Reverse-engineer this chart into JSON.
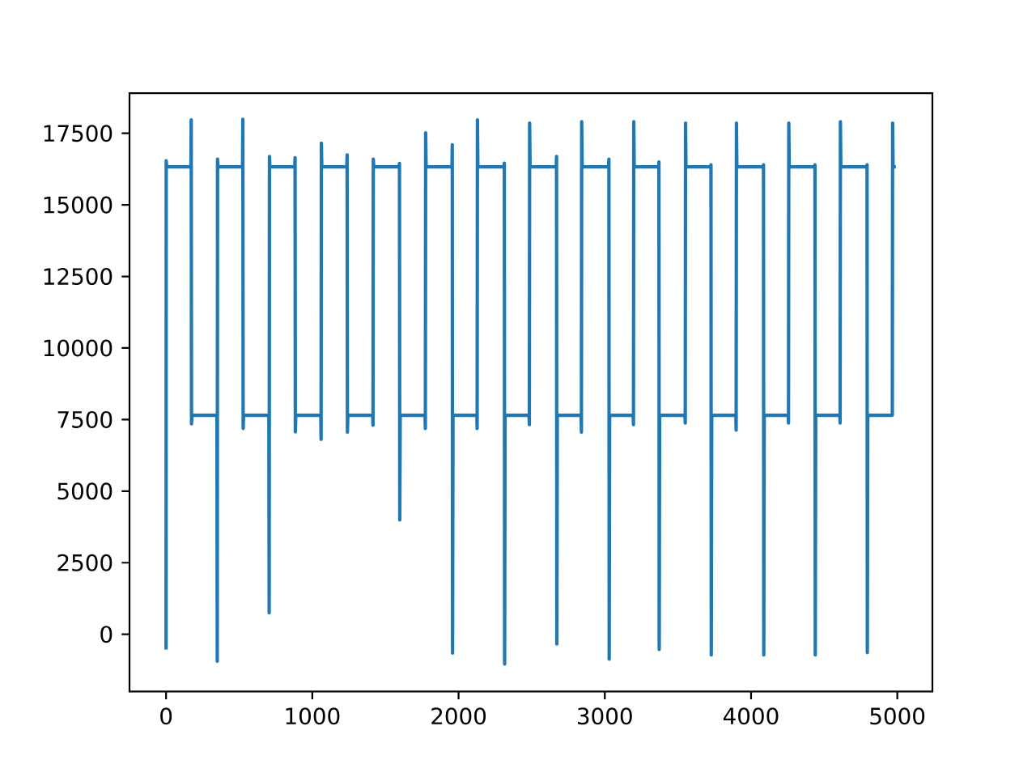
{
  "chart_data": {
    "type": "line",
    "color": "#1f77b4",
    "x": [
      0,
      1,
      4,
      170,
      172,
      174,
      177,
      348,
      350,
      352,
      355,
      523,
      525,
      527,
      530,
      703,
      705,
      707,
      710,
      880,
      882,
      884,
      887,
      1058,
      1060,
      1062,
      1065,
      1236,
      1238,
      1240,
      1243,
      1413,
      1415,
      1417,
      1420,
      1594,
      1596,
      1598,
      1601,
      1771,
      1773,
      1775,
      1778,
      1955,
      1957,
      1959,
      1962,
      2125,
      2127,
      2129,
      2132,
      2311,
      2313,
      2315,
      2318,
      2482,
      2484,
      2486,
      2489,
      2668,
      2670,
      2672,
      2675,
      2838,
      2840,
      2842,
      2845,
      3026,
      3028,
      3030,
      3033,
      3194,
      3196,
      3198,
      3201,
      3368,
      3370,
      3372,
      3375,
      3548,
      3550,
      3552,
      3555,
      3724,
      3726,
      3728,
      3731,
      3896,
      3898,
      3900,
      3903,
      4083,
      4085,
      4087,
      4090,
      4254,
      4256,
      4258,
      4261,
      4435,
      4437,
      4439,
      4442,
      4607,
      4609,
      4611,
      4614,
      4791,
      4793,
      4795,
      4798,
      4966,
      4968,
      4971,
      4990
    ],
    "values": [
      -530,
      16540,
      16330,
      16330,
      17970,
      7350,
      7650,
      7650,
      -940,
      16600,
      16330,
      16330,
      17990,
      7190,
      7650,
      7650,
      750,
      16690,
      16330,
      16330,
      16650,
      7070,
      7650,
      7650,
      6810,
      17160,
      16330,
      16330,
      16750,
      7060,
      7650,
      7650,
      7300,
      16600,
      16330,
      16330,
      16450,
      3990,
      7650,
      7650,
      7190,
      17520,
      16330,
      16330,
      17100,
      -660,
      7650,
      7650,
      7190,
      17970,
      16330,
      16330,
      16460,
      -1040,
      7650,
      7650,
      7320,
      17860,
      16330,
      16330,
      16690,
      -340,
      7650,
      7650,
      7060,
      17910,
      16330,
      16330,
      16600,
      -870,
      7650,
      7650,
      7320,
      17910,
      16330,
      16330,
      16500,
      -530,
      7650,
      7650,
      7380,
      17860,
      16330,
      16330,
      16400,
      -720,
      7650,
      7650,
      7130,
      17860,
      16330,
      16330,
      16400,
      -720,
      7650,
      7650,
      7380,
      17860,
      16330,
      16330,
      16400,
      -720,
      7650,
      7650,
      7380,
      17910,
      16330,
      16330,
      16400,
      -640,
      7650,
      7650,
      17860,
      16330,
      16330
    ],
    "xlim": [
      -250,
      5240
    ],
    "ylim": [
      -2000,
      18900
    ],
    "xticks": [
      0,
      1000,
      2000,
      3000,
      4000,
      5000
    ],
    "yticks": [
      0,
      2500,
      5000,
      7500,
      10000,
      12500,
      15000,
      17500
    ]
  }
}
